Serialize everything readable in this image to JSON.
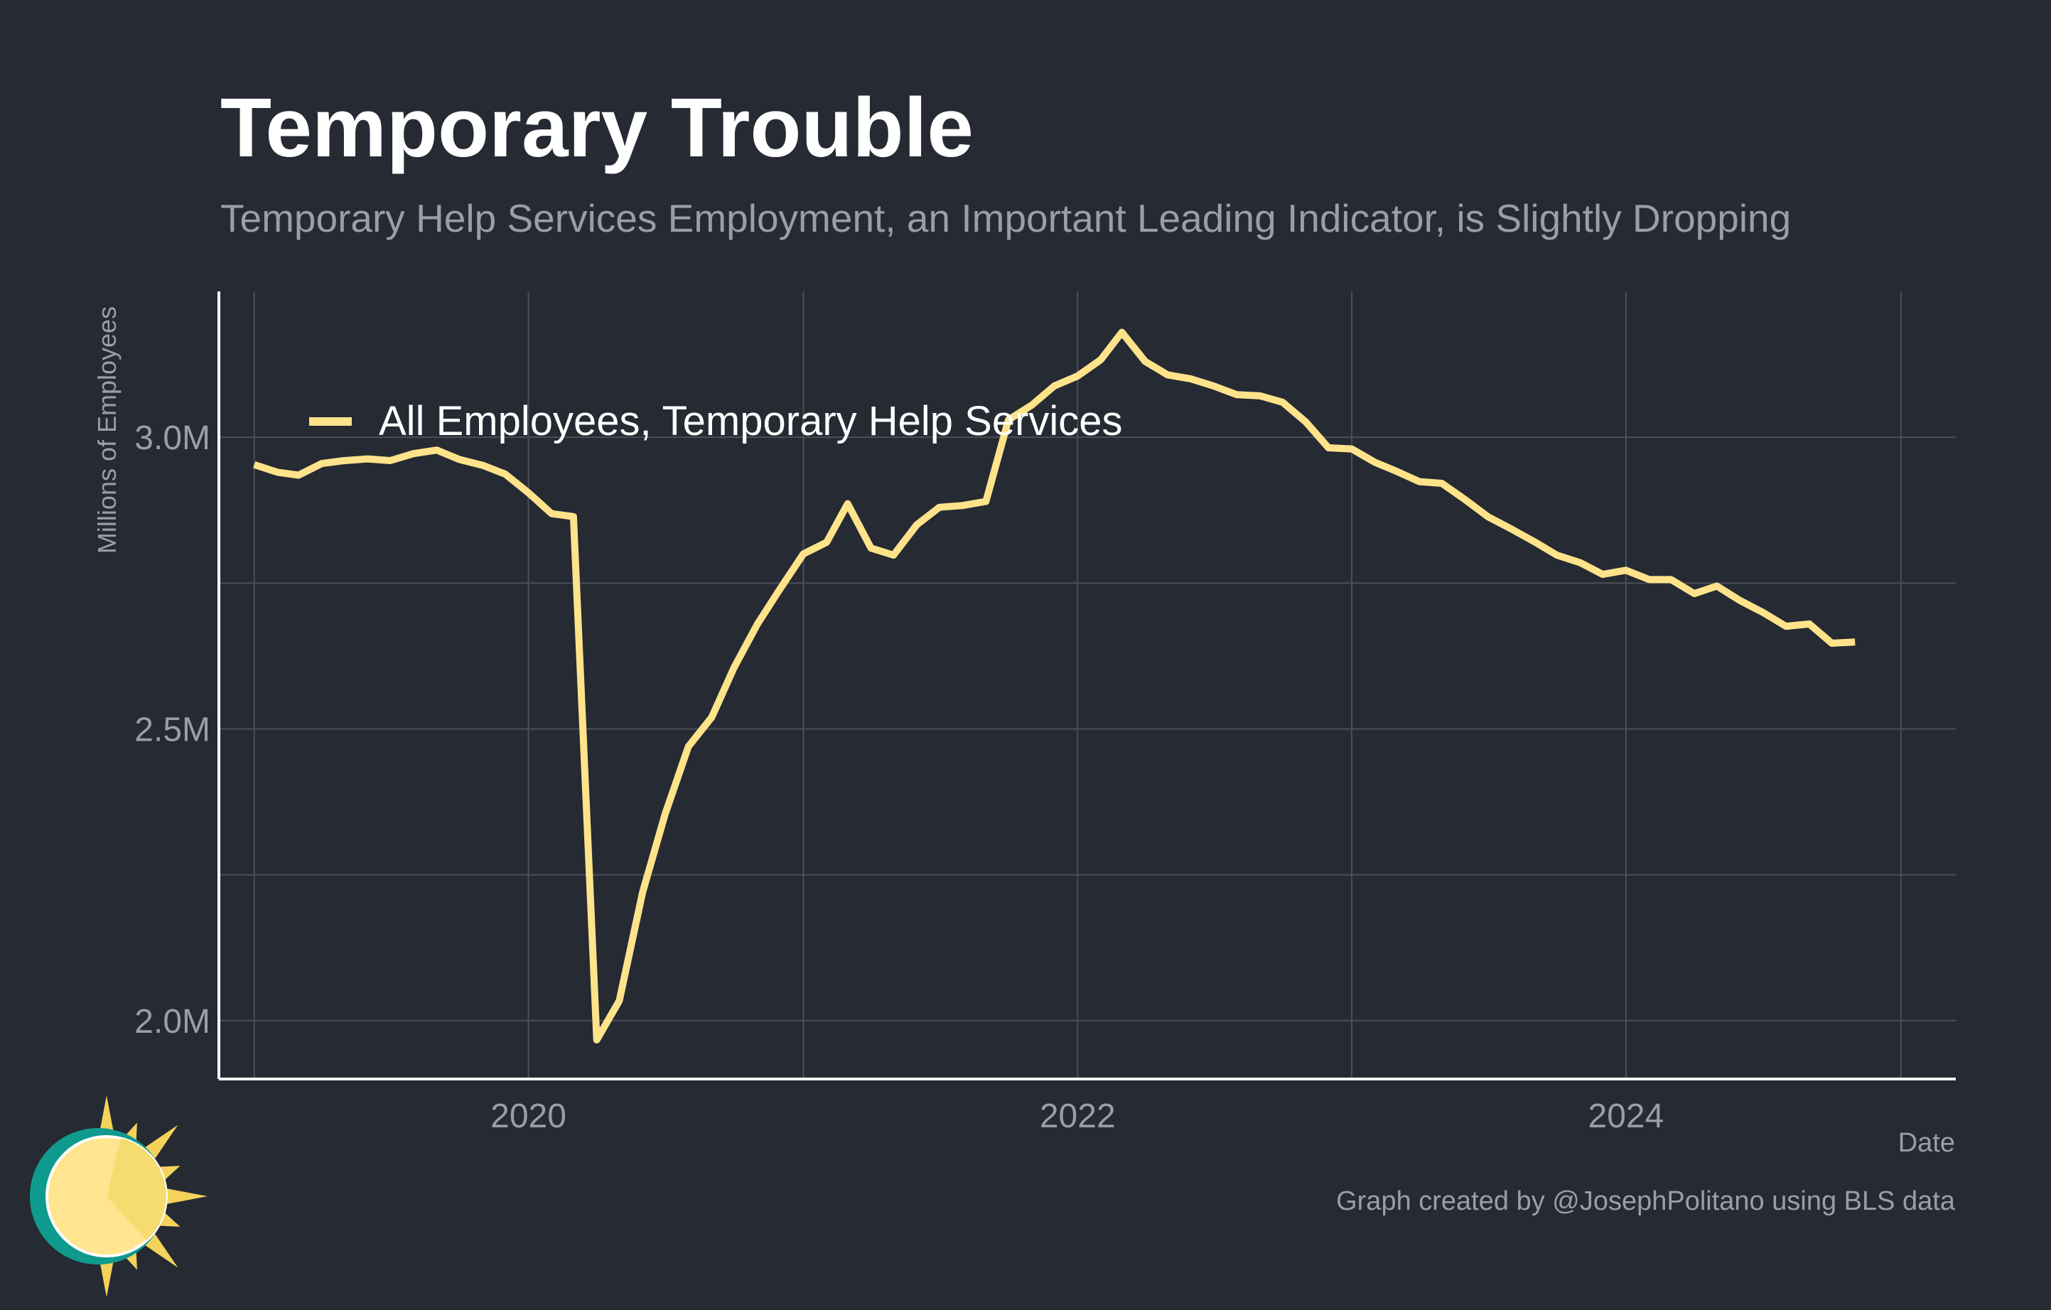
{
  "colors": {
    "background": "#252a33",
    "title": "#ffffff",
    "subtitle": "#9a9ea6",
    "grid": "#4a4f58",
    "axis_line": "#ffffff",
    "tick_label": "#9a9ea6",
    "series": "#ffe38a",
    "legend_text": "#ffffff",
    "logo_teal": "#0f9a8e",
    "logo_sun": "#ffe590",
    "logo_sun_shade": "#f5dc70",
    "logo_rays": "#f5d25a"
  },
  "logo": {
    "icon": "sun-logo-icon"
  },
  "chart_data": {
    "type": "line",
    "title": "Temporary Trouble",
    "subtitle": "Temporary Help Services Employment, an Important Leading Indicator, is Slightly Dropping",
    "xlabel": "Date",
    "ylabel": "Millions of Employees",
    "caption": "Graph created by @JosephPolitano using BLS data",
    "legend_position": "top-left",
    "grid": true,
    "xlim": [
      "2018-11-15",
      "2025-03-15"
    ],
    "ylim": [
      1.9,
      3.25
    ],
    "x_ticks": [
      "2020-01-01",
      "2022-01-01",
      "2024-01-01"
    ],
    "x_tick_labels": [
      "2020",
      "2022",
      "2024"
    ],
    "x_minor_ticks": [
      "2019-01-01",
      "2021-01-01",
      "2023-01-01",
      "2025-01-01"
    ],
    "y_ticks": [
      2.0,
      2.5,
      3.0
    ],
    "y_tick_labels": [
      "2.0M",
      "2.5M",
      "3.0M"
    ],
    "y_minor_ticks": [
      2.25,
      2.75
    ],
    "series": [
      {
        "name": "All Employees, Temporary Help Services",
        "x": [
          "2019-01-01",
          "2019-02-01",
          "2019-03-01",
          "2019-04-01",
          "2019-05-01",
          "2019-06-01",
          "2019-07-01",
          "2019-08-01",
          "2019-09-01",
          "2019-10-01",
          "2019-11-01",
          "2019-12-01",
          "2020-01-01",
          "2020-02-01",
          "2020-03-01",
          "2020-04-01",
          "2020-05-01",
          "2020-06-01",
          "2020-07-01",
          "2020-08-01",
          "2020-09-01",
          "2020-10-01",
          "2020-11-01",
          "2020-12-01",
          "2021-01-01",
          "2021-02-01",
          "2021-03-01",
          "2021-04-01",
          "2021-05-01",
          "2021-06-01",
          "2021-07-01",
          "2021-08-01",
          "2021-09-01",
          "2021-10-01",
          "2021-11-01",
          "2021-12-01",
          "2022-01-01",
          "2022-02-01",
          "2022-03-01",
          "2022-04-01",
          "2022-05-01",
          "2022-06-01",
          "2022-07-01",
          "2022-08-01",
          "2022-09-01",
          "2022-10-01",
          "2022-11-01",
          "2022-12-01",
          "2023-01-01",
          "2023-02-01",
          "2023-03-01",
          "2023-04-01",
          "2023-05-01",
          "2023-06-01",
          "2023-07-01",
          "2023-08-01",
          "2023-09-01",
          "2023-10-01",
          "2023-11-01",
          "2023-12-01",
          "2024-01-01",
          "2024-02-01",
          "2024-03-01",
          "2024-04-01",
          "2024-05-01",
          "2024-06-01",
          "2024-07-01",
          "2024-08-01",
          "2024-09-01",
          "2024-10-01",
          "2024-11-01"
        ],
        "values": [
          2.953,
          2.94,
          2.935,
          2.955,
          2.96,
          2.963,
          2.96,
          2.972,
          2.978,
          2.962,
          2.952,
          2.937,
          2.905,
          2.869,
          2.864,
          1.967,
          2.034,
          2.22,
          2.354,
          2.47,
          2.52,
          2.606,
          2.68,
          2.74,
          2.8,
          2.82,
          2.886,
          2.81,
          2.798,
          2.85,
          2.88,
          2.883,
          2.89,
          3.03,
          3.055,
          3.088,
          3.105,
          3.133,
          3.18,
          3.13,
          3.107,
          3.1,
          3.088,
          3.073,
          3.071,
          3.06,
          3.026,
          2.982,
          2.98,
          2.957,
          2.942,
          2.924,
          2.921,
          2.893,
          2.864,
          2.843,
          2.821,
          2.798,
          2.785,
          2.765,
          2.772,
          2.756,
          2.756,
          2.732,
          2.745,
          2.72,
          2.7,
          2.676,
          2.68,
          2.647,
          2.649
        ]
      }
    ]
  }
}
